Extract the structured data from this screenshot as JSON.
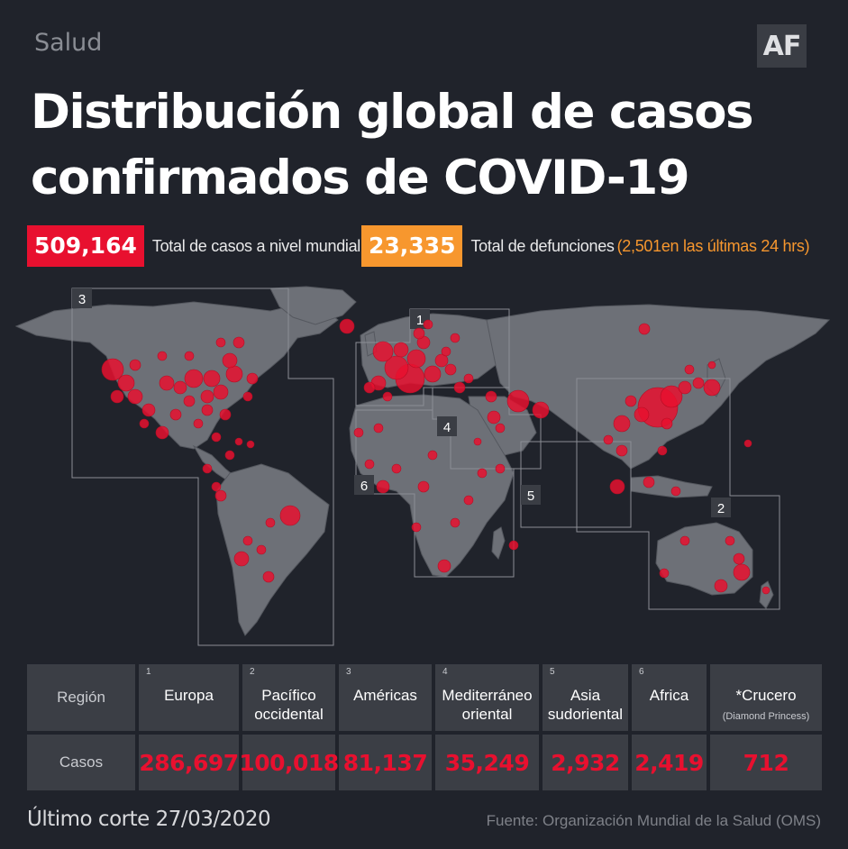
{
  "header": {
    "section": "Salud",
    "logo": "AF",
    "title_line1": "Distribución global de casos",
    "title_line2": "confirmados de COVID-19"
  },
  "stats": {
    "total_cases_value": "509,164",
    "total_cases_label": "Total de casos a nivel mundial",
    "total_deaths_value": "23,335",
    "total_deaths_label": "Total de defunciones",
    "deaths_last_24h_note": "(2,501en las últimas 24 hrs)"
  },
  "map": {
    "region_markers": [
      "1",
      "2",
      "3",
      "4",
      "5",
      "6"
    ],
    "land_color": "#6d7077",
    "dot_color": "#e8102f",
    "icon": "world-map-with-case-bubbles"
  },
  "table": {
    "row_header_region": "Región",
    "row_header_cases": "Casos",
    "columns": [
      {
        "num": "1",
        "name_line1": "Europa",
        "name_line2": "",
        "cases": "286,697"
      },
      {
        "num": "2",
        "name_line1": "Pacífico",
        "name_line2": "occidental",
        "cases": "100,018"
      },
      {
        "num": "3",
        "name_line1": "Américas",
        "name_line2": "",
        "cases": "81,137"
      },
      {
        "num": "4",
        "name_line1": "Mediterráneo",
        "name_line2": "oriental",
        "cases": "35,249"
      },
      {
        "num": "5",
        "name_line1": "Asia",
        "name_line2": "sudoriental",
        "cases": "2,932"
      },
      {
        "num": "6",
        "name_line1": "Africa",
        "name_line2": "",
        "cases": "2,419"
      },
      {
        "num": "",
        "name_line1": "*Crucero",
        "name_line2": "(Diamond Princess)",
        "cases": "712"
      }
    ]
  },
  "footer": {
    "last_update": "Último corte 27/03/2020",
    "source": "Fuente: Organización Mundial de la Salud (OMS)"
  },
  "colors": {
    "background": "#20232b",
    "red": "#e8102f",
    "orange": "#f7972e",
    "cell": "#3b3e45"
  }
}
